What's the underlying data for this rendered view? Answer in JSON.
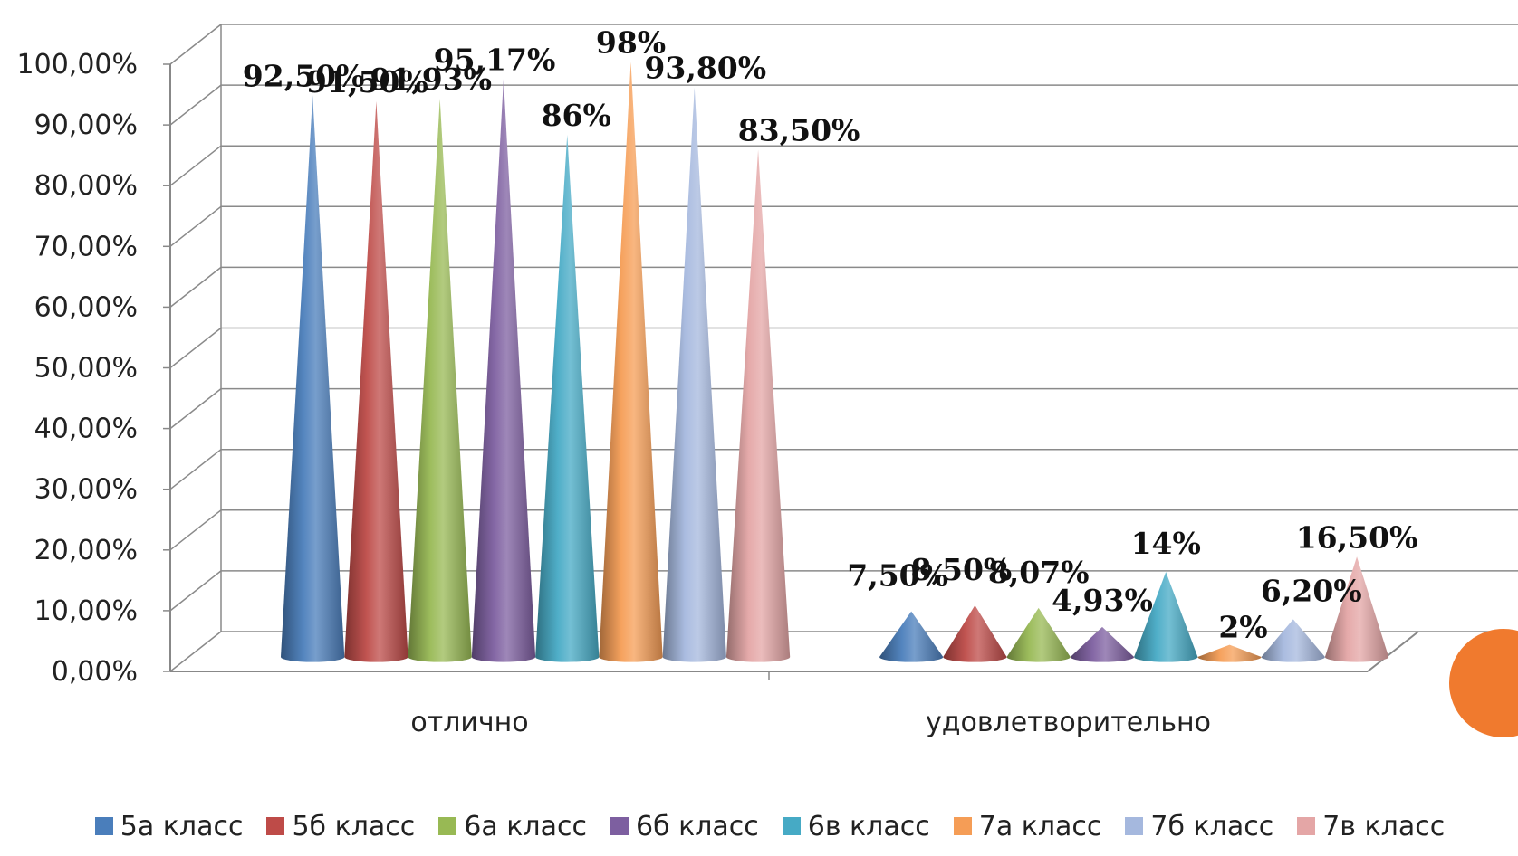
{
  "chart_data": {
    "type": "bar",
    "shape": "cone-3d",
    "categories": [
      "отлично",
      "удовлетворительно"
    ],
    "series": [
      {
        "name": "5а класс",
        "color": "#4a7ebb",
        "values": [
          92.5,
          7.5
        ],
        "labels": [
          "92,50%",
          "7,50%"
        ]
      },
      {
        "name": "5б класс",
        "color": "#be4b48",
        "values": [
          91.5,
          8.5
        ],
        "labels": [
          "91,50%",
          "8,50%"
        ]
      },
      {
        "name": "6а класс",
        "color": "#98b954",
        "values": [
          91.93,
          8.07
        ],
        "labels": [
          "91,93%",
          "8,07%"
        ]
      },
      {
        "name": "6б класс",
        "color": "#7d5fa0",
        "values": [
          95.17,
          4.93
        ],
        "labels": [
          "95,17%",
          "4,93%"
        ]
      },
      {
        "name": "6в класс",
        "color": "#46aac5",
        "values": [
          86,
          14
        ],
        "labels": [
          "86%",
          "14%"
        ]
      },
      {
        "name": "7а класс",
        "color": "#f59d56",
        "values": [
          98,
          2
        ],
        "labels": [
          "98%",
          "2%"
        ]
      },
      {
        "name": "7б класс",
        "color": "#a5b8de",
        "values": [
          93.8,
          6.2
        ],
        "labels": [
          "93,80%",
          "6,20%"
        ]
      },
      {
        "name": "7в класс",
        "color": "#e4a6a6",
        "values": [
          83.5,
          16.5
        ],
        "labels": [
          "83,50%",
          "16,50%"
        ]
      }
    ],
    "ylim": [
      0,
      100
    ],
    "ytick_values": [
      0,
      10,
      20,
      30,
      40,
      50,
      60,
      70,
      80,
      90,
      100
    ],
    "ytick_labels": [
      "0,00%",
      "10,00%",
      "20,00%",
      "30,00%",
      "40,00%",
      "50,00%",
      "60,00%",
      "70,00%",
      "80,00%",
      "90,00%",
      "100,00%"
    ],
    "grid": true,
    "legend_position": "bottom",
    "title": "",
    "xlabel": "",
    "ylabel": ""
  }
}
